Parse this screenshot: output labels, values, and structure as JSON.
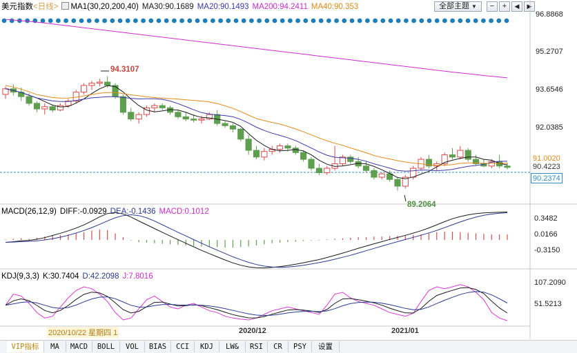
{
  "header": {
    "symbol": "美元指数",
    "period": "<日线>",
    "ma1": "MA1(30,20,200,40)",
    "ma30": "MA30:90.1689",
    "ma20": "MA20:90.1493",
    "ma200": "MA200:94.2411",
    "ma40": "MA40:90.353"
  },
  "controls": {
    "theme_label": "全部主题",
    "theme_arrow": "▼"
  },
  "macd_header": {
    "title": "MACD(26,12,9)",
    "diff": "DIFF:-0.0929",
    "dea": "DEA:-0.1436",
    "macd": "MACD:0.1012"
  },
  "kdj_header": {
    "title": "KDJ(9,3,3)",
    "k": "K:30.7404",
    "d": "D:42.2098",
    "j": "J:7.8016"
  },
  "price_axis": [
    "96.8868",
    "95.2707",
    "93.6546",
    "92.0385",
    "91.0020",
    "90.4223",
    "90.2374"
  ],
  "macd_axis": [
    "0.3482",
    "0.0166",
    "-0.3150"
  ],
  "kdj_axis": [
    "107.2090",
    "51.5213"
  ],
  "x_labels": [
    "2020/10/22 星期四 1",
    "2020/12",
    "2021/01"
  ],
  "annotations": {
    "high": "94.3107",
    "low": "89.2064"
  },
  "tabs": [
    "VIP指标",
    "MA",
    "MACD",
    "BOLL",
    "VOL",
    "BIAS",
    "CCI",
    "KDJ",
    "LW&",
    "RSI",
    "CR",
    "PSY",
    "设置"
  ],
  "colors": {
    "up": "#d94a4a",
    "down": "#5e9e4f",
    "ma30": "#1a1a1a",
    "ma20": "#3a3aa8",
    "ma200": "#cc2ccc",
    "ma40": "#e08a1a",
    "dots": "#1e7fb8",
    "j": "#d63ad6"
  },
  "chart_data": {
    "type": "candlestick",
    "y_range": [
      88.6,
      97.1
    ],
    "candles": [
      [
        93.5,
        93.85,
        93.3,
        93.75
      ],
      [
        93.75,
        93.95,
        93.45,
        93.6
      ],
      [
        93.6,
        93.8,
        93.2,
        93.4
      ],
      [
        93.4,
        93.55,
        93.0,
        93.1
      ],
      [
        93.1,
        93.2,
        92.7,
        92.85
      ],
      [
        92.85,
        93.1,
        92.6,
        92.95
      ],
      [
        92.95,
        93.05,
        92.7,
        92.8
      ],
      [
        92.8,
        93.1,
        92.75,
        93.0
      ],
      [
        93.0,
        93.3,
        92.9,
        93.2
      ],
      [
        93.2,
        93.7,
        93.1,
        93.6
      ],
      [
        93.6,
        94.0,
        93.5,
        93.9
      ],
      [
        93.9,
        94.1,
        93.7,
        94.0
      ],
      [
        94.0,
        94.2,
        93.85,
        94.05
      ],
      [
        94.05,
        94.31,
        93.8,
        93.9
      ],
      [
        93.9,
        94.0,
        93.3,
        93.4
      ],
      [
        93.4,
        93.5,
        92.6,
        92.7
      ],
      [
        92.7,
        92.9,
        92.3,
        92.4
      ],
      [
        92.4,
        92.7,
        92.2,
        92.6
      ],
      [
        92.6,
        93.0,
        92.5,
        92.9
      ],
      [
        92.9,
        93.1,
        92.7,
        93.0
      ],
      [
        93.0,
        93.1,
        92.8,
        92.9
      ],
      [
        92.9,
        93.0,
        92.6,
        92.7
      ],
      [
        92.7,
        92.8,
        92.4,
        92.5
      ],
      [
        92.5,
        92.7,
        92.3,
        92.4
      ],
      [
        92.4,
        92.6,
        92.25,
        92.35
      ],
      [
        92.35,
        92.55,
        92.2,
        92.4
      ],
      [
        92.4,
        92.7,
        92.35,
        92.6
      ],
      [
        92.6,
        92.8,
        92.1,
        92.2
      ],
      [
        92.2,
        92.3,
        92.0,
        92.1
      ],
      [
        92.1,
        92.2,
        91.8,
        91.95
      ],
      [
        91.95,
        92.0,
        91.4,
        91.5
      ],
      [
        91.5,
        91.7,
        90.8,
        91.0
      ],
      [
        91.0,
        91.2,
        90.6,
        90.7
      ],
      [
        90.7,
        91.1,
        90.55,
        90.95
      ],
      [
        90.95,
        91.2,
        90.8,
        91.05
      ],
      [
        91.05,
        91.3,
        90.9,
        91.2
      ],
      [
        91.2,
        91.3,
        90.95,
        91.1
      ],
      [
        91.1,
        91.2,
        90.8,
        90.9
      ],
      [
        90.9,
        91.0,
        90.5,
        90.6
      ],
      [
        90.6,
        90.7,
        90.1,
        90.2
      ],
      [
        90.2,
        90.4,
        89.9,
        90.0
      ],
      [
        90.0,
        90.3,
        89.9,
        90.2
      ],
      [
        90.2,
        91.2,
        90.1,
        90.4
      ],
      [
        90.4,
        90.8,
        90.3,
        90.7
      ],
      [
        90.7,
        90.8,
        90.4,
        90.5
      ],
      [
        90.5,
        90.7,
        90.2,
        90.3
      ],
      [
        90.3,
        90.5,
        90.0,
        90.1
      ],
      [
        90.1,
        90.2,
        89.7,
        89.8
      ],
      [
        89.8,
        90.0,
        89.7,
        89.95
      ],
      [
        89.95,
        90.1,
        89.6,
        89.7
      ],
      [
        89.7,
        89.8,
        89.2,
        89.4
      ],
      [
        89.4,
        89.9,
        89.3,
        89.8
      ],
      [
        89.8,
        90.3,
        89.7,
        90.2
      ],
      [
        90.2,
        90.7,
        90.1,
        90.6
      ],
      [
        90.6,
        90.8,
        90.2,
        90.3
      ],
      [
        90.3,
        90.5,
        90.1,
        90.4
      ],
      [
        90.4,
        90.9,
        90.3,
        90.8
      ],
      [
        90.8,
        91.1,
        90.6,
        90.7
      ],
      [
        90.7,
        91.2,
        90.6,
        91.0
      ],
      [
        91.0,
        91.1,
        90.5,
        90.6
      ],
      [
        90.6,
        90.8,
        90.3,
        90.4
      ],
      [
        90.4,
        90.6,
        90.25,
        90.3
      ],
      [
        90.3,
        90.6,
        90.2,
        90.5
      ],
      [
        90.5,
        90.8,
        90.2,
        90.3
      ],
      [
        90.3,
        90.45,
        90.15,
        90.24
      ]
    ],
    "ma200": [
      96.85,
      96.78,
      96.7,
      96.6,
      96.5,
      96.4,
      96.3,
      96.2,
      96.1,
      96.0,
      95.9,
      95.8,
      95.7,
      95.6,
      95.5,
      95.4,
      95.3,
      95.2,
      95.1,
      95.0,
      94.9,
      94.8,
      94.7,
      94.6,
      94.5,
      94.41,
      94.32,
      94.24
    ],
    "macd_range": [
      -0.5,
      0.45
    ],
    "macd_hist": [
      0.01,
      0.02,
      0.03,
      0.02,
      0.04,
      0.06,
      0.08,
      0.09,
      0.1,
      0.12,
      0.14,
      0.17,
      0.19,
      0.18,
      0.12,
      0.05,
      -0.01,
      -0.04,
      -0.05,
      -0.06,
      -0.07,
      -0.08,
      -0.09,
      -0.1,
      -0.11,
      -0.12,
      -0.12,
      -0.13,
      -0.14,
      -0.14,
      -0.13,
      -0.12,
      -0.1,
      -0.08,
      -0.06,
      -0.05,
      -0.04,
      -0.03,
      -0.02,
      -0.01,
      -0.01,
      0.01,
      0.02,
      0.03,
      0.04,
      0.05,
      0.05,
      0.06,
      0.06,
      0.07,
      0.07,
      0.08,
      0.09,
      0.1,
      0.12,
      0.14,
      0.15,
      0.15,
      0.14,
      0.13,
      0.12,
      0.11,
      0.1,
      0.1,
      0.1
    ],
    "kdj_range": [
      -5,
      115
    ],
    "kdj_j": [
      50,
      80,
      75,
      55,
      30,
      15,
      20,
      45,
      70,
      90,
      100,
      95,
      80,
      60,
      30,
      10,
      15,
      40,
      65,
      75,
      60,
      45,
      40,
      50,
      55,
      45,
      35,
      30,
      20,
      15,
      12,
      10,
      15,
      25,
      35,
      40,
      45,
      40,
      35,
      30,
      25,
      50,
      80,
      85,
      70,
      60,
      55,
      50,
      40,
      30,
      25,
      20,
      28,
      60,
      90,
      100,
      95,
      100,
      106,
      100,
      85,
      65,
      30,
      15,
      8
    ]
  }
}
